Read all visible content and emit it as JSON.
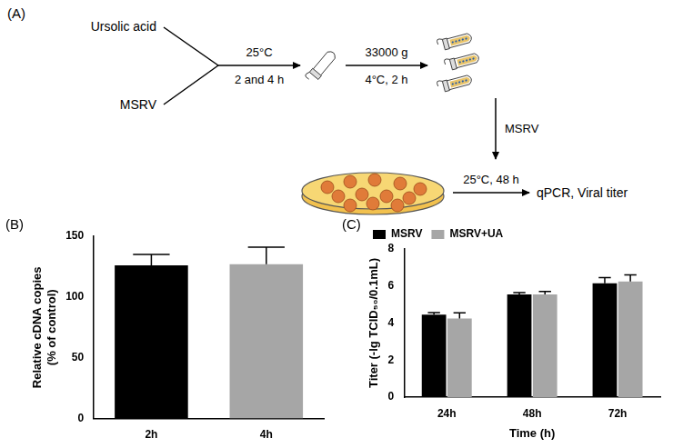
{
  "diagram": {
    "label": "(A)",
    "inputs": [
      "Ursolic acid",
      "MSRV"
    ],
    "steps": [
      {
        "above": "25°C",
        "below": "2 and 4 h"
      },
      {
        "above": "33000 g",
        "below": "4°C, 2 h"
      },
      {
        "beside": "MSRV"
      },
      {
        "above": "25°C, 48 h"
      }
    ],
    "output": "qPCR, Viral titer"
  },
  "chart_data": [
    {
      "type": "bar",
      "annotations": [
        "(B)"
      ],
      "categories": [
        "2h",
        "4h"
      ],
      "values": [
        126,
        127
      ],
      "errors": [
        9,
        14
      ],
      "colors": [
        "#000000",
        "#a6a6a6"
      ],
      "y_label": [
        "Relative cDNA copies",
        "(% of control)"
      ],
      "ylim": [
        0,
        150
      ],
      "yticks": [
        0,
        50,
        100,
        150
      ],
      "grid": false
    },
    {
      "type": "bar",
      "annotations": [
        "(C)"
      ],
      "categories": [
        "24h",
        "48h",
        "72h"
      ],
      "series": [
        {
          "name": "MSRV",
          "color": "#000000",
          "values": [
            4.45,
            5.55,
            6.15
          ],
          "errors": [
            0.12,
            0.1,
            0.3
          ]
        },
        {
          "name": "MSRV+UA",
          "color": "#a6a6a6",
          "values": [
            4.25,
            5.55,
            6.25
          ],
          "errors": [
            0.3,
            0.15,
            0.35
          ]
        }
      ],
      "x_label": "Time (h)",
      "y_label": "Titer (-lg TCID₅₀/0.1mL)",
      "ylim": [
        0,
        8
      ],
      "yticks": [
        0,
        2,
        4,
        6,
        8
      ],
      "grid": false,
      "legend": "top-left"
    }
  ]
}
